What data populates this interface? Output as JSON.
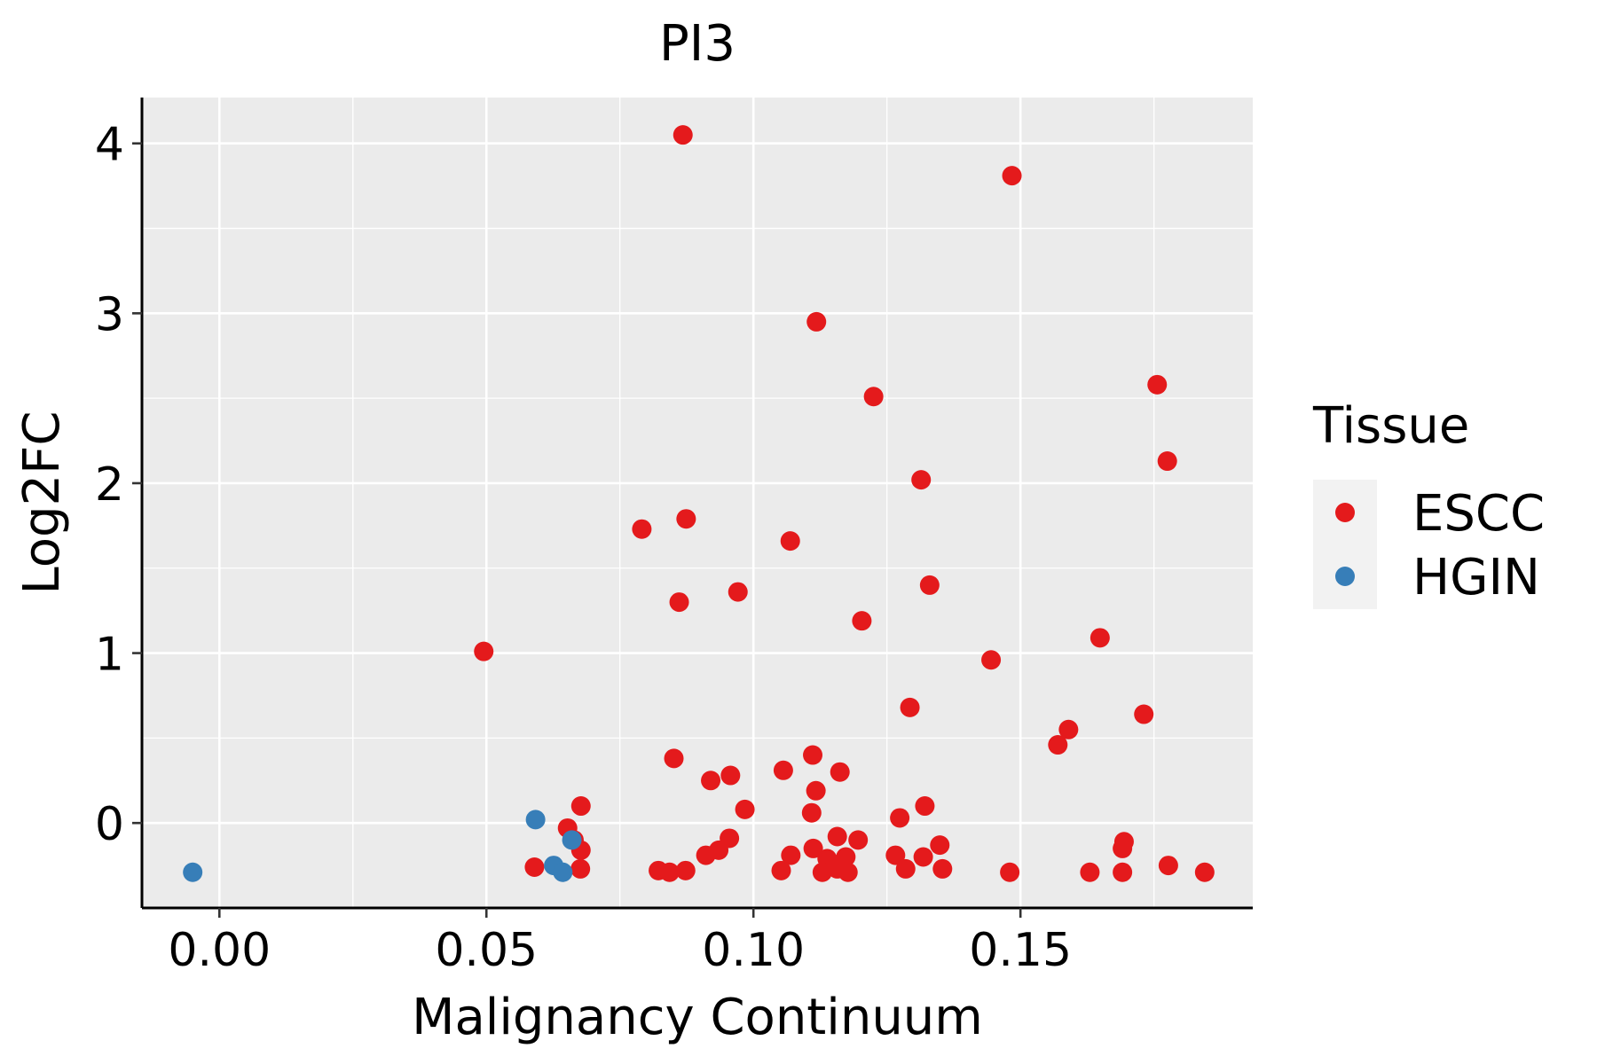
{
  "chart_data": {
    "type": "scatter",
    "title": "PI3",
    "xlabel": "Malignancy Continuum",
    "ylabel": "Log2FC",
    "xlim": [
      -0.0145,
      0.1935
    ],
    "ylim": [
      -0.5,
      4.27
    ],
    "xticks": [
      0.0,
      0.05,
      0.1,
      0.15
    ],
    "xtick_labels": [
      "0.00",
      "0.05",
      "0.10",
      "0.15"
    ],
    "yticks": [
      0,
      1,
      2,
      3,
      4
    ],
    "ytick_labels": [
      "0",
      "1",
      "2",
      "3",
      "4"
    ],
    "grid": true,
    "legend": {
      "title": "Tissue",
      "position": "right",
      "entries": [
        {
          "name": "ESCC",
          "color": "#e41a1c"
        },
        {
          "name": "HGIN",
          "color": "#377eb8"
        }
      ]
    },
    "series": [
      {
        "name": "ESCC",
        "color": "#e41a1c",
        "points": [
          [
            0.0868,
            4.05
          ],
          [
            0.1484,
            3.81
          ],
          [
            0.1118,
            2.95
          ],
          [
            0.1225,
            2.51
          ],
          [
            0.1756,
            2.58
          ],
          [
            0.1775,
            2.13
          ],
          [
            0.1314,
            2.02
          ],
          [
            0.0791,
            1.73
          ],
          [
            0.0874,
            1.79
          ],
          [
            0.1069,
            1.66
          ],
          [
            0.0861,
            1.3
          ],
          [
            0.0971,
            1.36
          ],
          [
            0.133,
            1.4
          ],
          [
            0.1203,
            1.19
          ],
          [
            0.0495,
            1.01
          ],
          [
            0.1445,
            0.96
          ],
          [
            0.1649,
            1.09
          ],
          [
            0.1293,
            0.68
          ],
          [
            0.1731,
            0.64
          ],
          [
            0.159,
            0.55
          ],
          [
            0.157,
            0.46
          ],
          [
            0.0851,
            0.38
          ],
          [
            0.1111,
            0.4
          ],
          [
            0.0957,
            0.28
          ],
          [
            0.092,
            0.25
          ],
          [
            0.1056,
            0.31
          ],
          [
            0.1162,
            0.3
          ],
          [
            0.1117,
            0.19
          ],
          [
            0.0677,
            0.1
          ],
          [
            0.0984,
            0.08
          ],
          [
            0.1109,
            0.06
          ],
          [
            0.1274,
            0.03
          ],
          [
            0.1321,
            0.1
          ],
          [
            0.0652,
            -0.03
          ],
          [
            0.0664,
            -0.1
          ],
          [
            0.0677,
            -0.16
          ],
          [
            0.0955,
            -0.09
          ],
          [
            0.0935,
            -0.16
          ],
          [
            0.0911,
            -0.19
          ],
          [
            0.1157,
            -0.08
          ],
          [
            0.1196,
            -0.1
          ],
          [
            0.1112,
            -0.15
          ],
          [
            0.107,
            -0.19
          ],
          [
            0.1138,
            -0.21
          ],
          [
            0.1173,
            -0.2
          ],
          [
            0.1266,
            -0.19
          ],
          [
            0.1349,
            -0.13
          ],
          [
            0.1318,
            -0.2
          ],
          [
            0.1694,
            -0.11
          ],
          [
            0.1691,
            -0.15
          ],
          [
            0.059,
            -0.26
          ],
          [
            0.0676,
            -0.27
          ],
          [
            0.0822,
            -0.28
          ],
          [
            0.0843,
            -0.29
          ],
          [
            0.0873,
            -0.28
          ],
          [
            0.1052,
            -0.28
          ],
          [
            0.1129,
            -0.29
          ],
          [
            0.1157,
            -0.27
          ],
          [
            0.1177,
            -0.29
          ],
          [
            0.1285,
            -0.27
          ],
          [
            0.1354,
            -0.27
          ],
          [
            0.148,
            -0.29
          ],
          [
            0.163,
            -0.29
          ],
          [
            0.1691,
            -0.29
          ],
          [
            0.1777,
            -0.25
          ],
          [
            0.1845,
            -0.29
          ]
        ]
      },
      {
        "name": "HGIN",
        "color": "#377eb8",
        "points": [
          [
            -0.005,
            -0.29
          ],
          [
            0.0592,
            0.02
          ],
          [
            0.066,
            -0.1
          ],
          [
            0.0626,
            -0.25
          ],
          [
            0.0643,
            -0.29
          ]
        ]
      }
    ]
  }
}
